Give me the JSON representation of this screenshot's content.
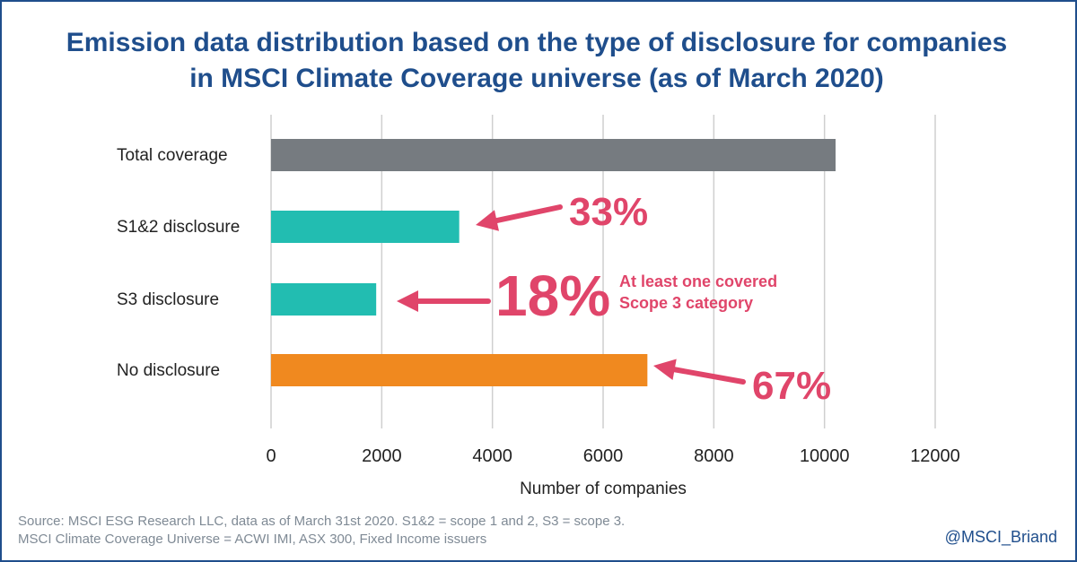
{
  "title_lines": [
    "Emission data distribution based on the type of disclosure for companies",
    "in MSCI Climate Coverage universe (as of March 2020)"
  ],
  "source_lines": [
    "Source: MSCI ESG Research LLC, data as of March 31st 2020. S1&2 = scope 1 and 2, S3 = scope 3.",
    "MSCI Climate Coverage Universe = ACWI IMI, ASX 300, Fixed Income issuers"
  ],
  "handle": "@MSCI_Briand",
  "colors": {
    "title": "#1f4e8c",
    "gray_bar": "#767b80",
    "teal_bar": "#22bdb1",
    "orange_bar": "#f0891f",
    "annotation": "#e0456a"
  },
  "chart_data": {
    "type": "bar",
    "orientation": "horizontal",
    "categories": [
      "Total coverage",
      "S1&2 disclosure",
      "S3 disclosure",
      "No disclosure"
    ],
    "values": [
      10200,
      3400,
      1900,
      6800
    ],
    "bar_colors": [
      "#767b80",
      "#22bdb1",
      "#22bdb1",
      "#f0891f"
    ],
    "xlabel": "Number of companies",
    "xlim": [
      0,
      12000
    ],
    "xticks": [
      "0",
      "2000",
      "4000",
      "6000",
      "8000",
      "10000",
      "12000"
    ],
    "grid": "vertical",
    "annotations": [
      {
        "bar": 1,
        "text": "33%"
      },
      {
        "bar": 2,
        "text": "18%",
        "note_lines": [
          "At least one covered",
          "Scope 3 category"
        ]
      },
      {
        "bar": 3,
        "text": "67%"
      }
    ]
  }
}
